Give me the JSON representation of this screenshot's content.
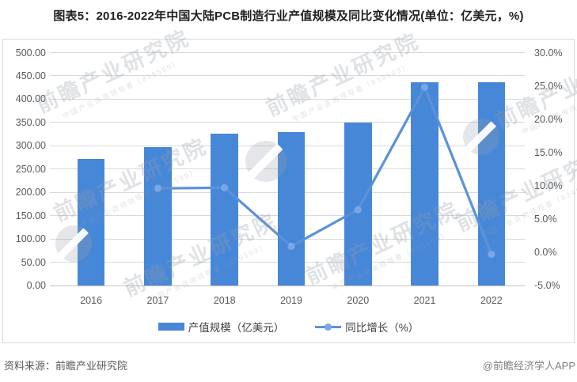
{
  "title": "图表5：2016-2022年中国大陆PCB制造行业产值规模及同比变化情况(单位：亿美元，%)",
  "chart_data": {
    "type": "combo-bar-line",
    "categories": [
      "2016",
      "2017",
      "2018",
      "2019",
      "2020",
      "2021",
      "2022"
    ],
    "series": [
      {
        "name": "产值规模（亿美元）",
        "type": "bar",
        "axis": "left",
        "values": [
          271.2,
          297.3,
          326.0,
          329.0,
          350.1,
          436.9,
          435.8
        ]
      },
      {
        "name": "同比增长（%）",
        "type": "line",
        "axis": "right",
        "values": [
          null,
          9.6,
          9.7,
          0.9,
          6.4,
          24.8,
          -0.3
        ]
      }
    ],
    "left_axis": {
      "min": 0,
      "max": 500,
      "step": 50,
      "decimals": 2,
      "suffix": ""
    },
    "right_axis": {
      "min": -5,
      "max": 30,
      "step": 5,
      "decimals": 1,
      "suffix": "%"
    },
    "grid": true,
    "legend_position": "bottom",
    "title": "图表5：2016-2022年中国大陆PCB制造行业产值规模及同比变化情况(单位：亿美元，%)"
  },
  "footer": {
    "source": "资料来源：前瞻产业研究院",
    "credit": "@前瞻经济学人APP"
  },
  "watermark": {
    "text": "前瞻产业研究院",
    "subtext": "中国产业咨询领导者（839599）"
  },
  "colors": {
    "bar": "#4787d8",
    "line": "#5b91da",
    "marker": "#7aa6e5",
    "grid": "#d9d9d9",
    "axis_line": "#c3c3c3",
    "axis_text": "#595959",
    "title_text": "#1f1f1f",
    "source_text": "#595959",
    "credit_text": "#808080",
    "panel_border": "#d8d8d8"
  }
}
